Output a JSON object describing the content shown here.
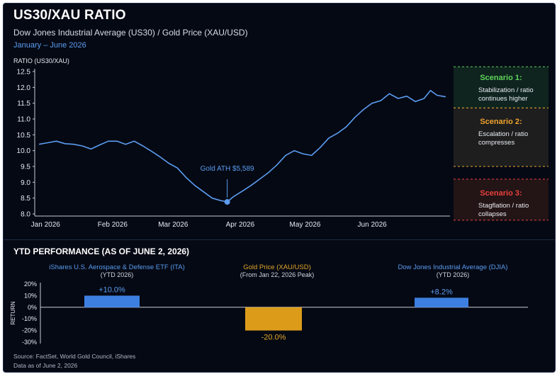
{
  "header": {
    "title": "US30/XAU RATIO",
    "subtitle": "Dow Jones Industrial Average (US30) / Gold Price (XAU/USD)",
    "date_range": "January – June 2026",
    "y_axis_label": "RATIO (US30/XAU)"
  },
  "annotation": {
    "text": "Gold ATH $5,589"
  },
  "scenarios": [
    {
      "title": "Scenario 1:",
      "desc": "Stabilization / ratio continues higher",
      "color": "#5fd35a",
      "range": [
        11.35,
        12.65
      ]
    },
    {
      "title": "Scenario 2:",
      "desc": "Escalation / ratio compresses",
      "color": "#f0a32e",
      "range": [
        9.5,
        11.35
      ]
    },
    {
      "title": "Scenario 3:",
      "desc": "Stagflation / ratio collapses",
      "color": "#e8403c",
      "range": [
        7.8,
        9.1
      ]
    }
  ],
  "chart_data": [
    {
      "type": "line",
      "title": "US30/XAU RATIO",
      "ylabel": "RATIO (US30/XAU)",
      "ylim": [
        8.0,
        12.5
      ],
      "y_ticks": [
        "12.5",
        "12.0",
        "11.5",
        "11.0",
        "10.5",
        "10.0",
        "9.5",
        "9.0",
        "8.5",
        "8.0"
      ],
      "x_ticks": [
        "Jan 2026",
        "Feb 2026",
        "Mar 2026",
        "Apr 2026",
        "May 2026",
        "Jun 2026"
      ],
      "series": [
        {
          "color": "#5b9cf0",
          "points": [
            [
              "2025-12-29",
              10.2
            ],
            [
              "2026-01-02",
              10.25
            ],
            [
              "2026-01-06",
              10.3
            ],
            [
              "2026-01-10",
              10.22
            ],
            [
              "2026-01-14",
              10.2
            ],
            [
              "2026-01-18",
              10.15
            ],
            [
              "2026-01-22",
              10.05
            ],
            [
              "2026-01-26",
              10.18
            ],
            [
              "2026-01-30",
              10.3
            ],
            [
              "2026-02-03",
              10.3
            ],
            [
              "2026-02-07",
              10.2
            ],
            [
              "2026-02-11",
              10.3
            ],
            [
              "2026-02-15",
              10.15
            ],
            [
              "2026-02-19",
              9.98
            ],
            [
              "2026-02-23",
              9.8
            ],
            [
              "2026-02-27",
              9.6
            ],
            [
              "2026-03-03",
              9.45
            ],
            [
              "2026-03-07",
              9.15
            ],
            [
              "2026-03-11",
              8.9
            ],
            [
              "2026-03-15",
              8.7
            ],
            [
              "2026-03-19",
              8.5
            ],
            [
              "2026-03-23",
              8.42
            ],
            [
              "2026-03-26",
              8.38
            ],
            [
              "2026-03-29",
              8.55
            ],
            [
              "2026-04-02",
              8.72
            ],
            [
              "2026-04-06",
              8.9
            ],
            [
              "2026-04-10",
              9.1
            ],
            [
              "2026-04-14",
              9.3
            ],
            [
              "2026-04-18",
              9.55
            ],
            [
              "2026-04-22",
              9.85
            ],
            [
              "2026-04-26",
              10.0
            ],
            [
              "2026-04-30",
              9.9
            ],
            [
              "2026-05-04",
              9.85
            ],
            [
              "2026-05-08",
              10.1
            ],
            [
              "2026-05-12",
              10.4
            ],
            [
              "2026-05-16",
              10.55
            ],
            [
              "2026-05-20",
              10.75
            ],
            [
              "2026-05-24",
              11.05
            ],
            [
              "2026-05-28",
              11.3
            ],
            [
              "2026-06-01",
              11.5
            ],
            [
              "2026-06-05",
              11.58
            ],
            [
              "2026-06-09",
              11.8
            ],
            [
              "2026-06-13",
              11.65
            ],
            [
              "2026-06-17",
              11.72
            ],
            [
              "2026-06-21",
              11.55
            ],
            [
              "2026-06-25",
              11.65
            ],
            [
              "2026-06-28",
              11.9
            ],
            [
              "2026-07-01",
              11.75
            ],
            [
              "2026-07-05",
              11.7
            ]
          ]
        }
      ],
      "annotations": [
        {
          "x": "2026-03-26",
          "y": 8.38,
          "label": "Gold ATH $5,589"
        }
      ],
      "grid": false
    },
    {
      "type": "bar",
      "title": "YTD PERFORMANCE (AS OF JUNE 2, 2026)",
      "ylabel": "RETURN",
      "ylim": [
        -30,
        20
      ],
      "y_ticks": [
        "20%",
        "10%",
        "0%",
        "-10%",
        "-20%",
        "-30%"
      ],
      "categories": [
        {
          "name": "iShares U.S. Aerospace & Defense ETF (ITA)",
          "note": "(YTD 2026)"
        },
        {
          "name": "Gold Price (XAU/USD)",
          "note": "(From Jan 22, 2026 Peak)"
        },
        {
          "name": "Dow Jones Industrial Average (DJIA)",
          "note": "(YTD 2026)"
        }
      ],
      "values": [
        10.0,
        -20.0,
        8.2
      ],
      "value_labels": [
        "+10.0%",
        "-20.0%",
        "+8.2%"
      ],
      "colors": [
        "#3d7fe0",
        "#dc9c1a",
        "#3d7fe0"
      ]
    }
  ],
  "perf": {
    "title": "YTD PERFORMANCE (AS OF JUNE 2, 2026)"
  },
  "footer": {
    "source": "Source: FactSet, World Gold Council, iShares",
    "as_of": "Data as of June 2, 2026"
  }
}
